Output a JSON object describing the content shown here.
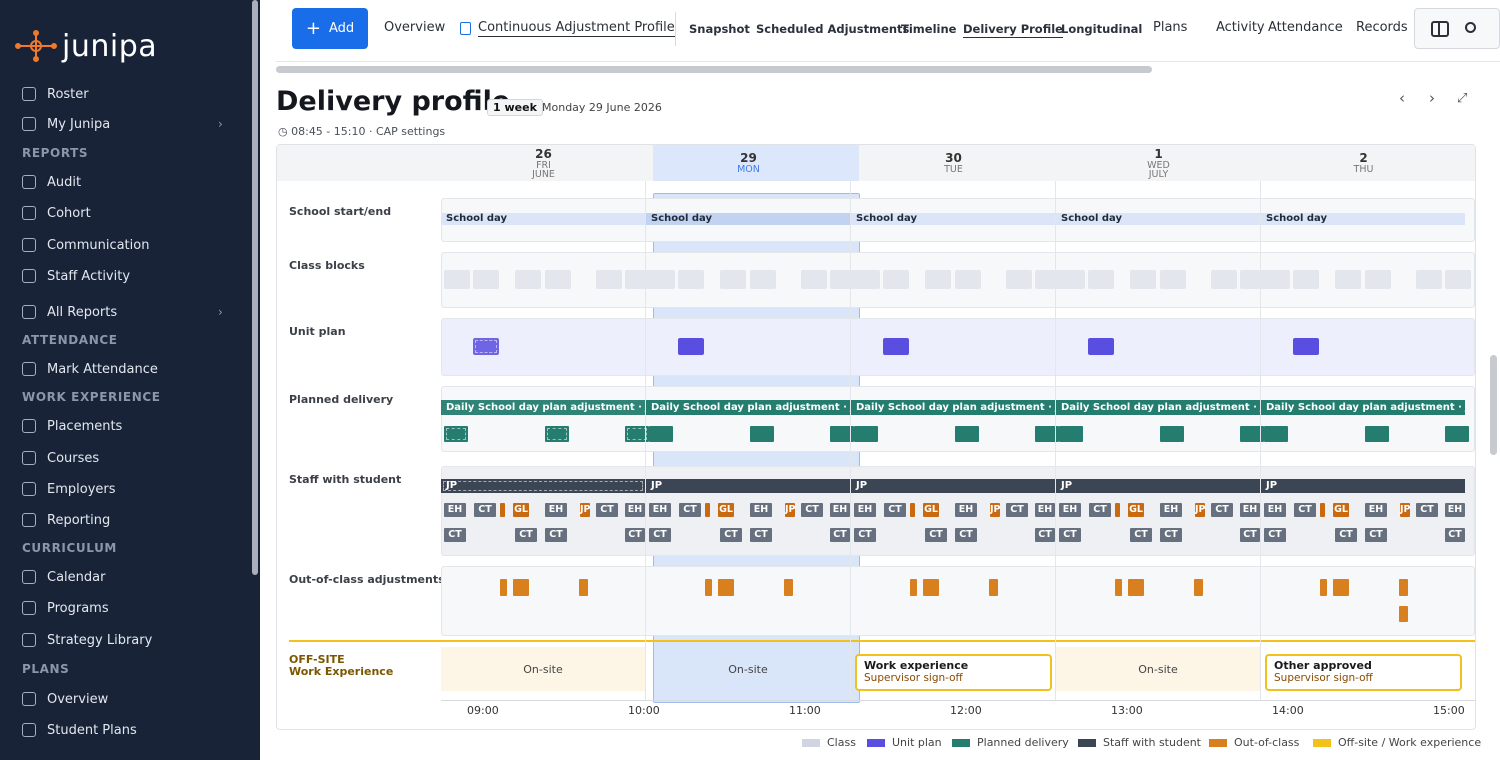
{
  "brand": "junipa",
  "sidebar": {
    "items": [
      {
        "label": "Roster",
        "icon": "list-icon"
      },
      {
        "label": "My Junipa",
        "icon": "compass-icon",
        "chev": "›"
      },
      {
        "section": "REPORTS"
      },
      {
        "label": "Audit",
        "icon": "clipboard-icon"
      },
      {
        "label": "Cohort",
        "icon": "users-icon"
      },
      {
        "label": "Communication",
        "icon": "message-icon"
      },
      {
        "label": "Staff Activity",
        "icon": "activity-icon"
      },
      {
        "label": "All Reports",
        "icon": "grid-icon",
        "chev": "›"
      },
      {
        "section": "ATTENDANCE"
      },
      {
        "label": "Mark Attendance",
        "icon": "user-check-icon"
      },
      {
        "section": "WORK EXPERIENCE"
      },
      {
        "label": "Placements",
        "icon": "briefcase-icon"
      },
      {
        "label": "Courses",
        "icon": "graduation-icon"
      },
      {
        "label": "Employers",
        "icon": "building-icon"
      },
      {
        "label": "Reporting",
        "icon": "report-icon"
      },
      {
        "section": "CURRICULUM"
      },
      {
        "label": "Calendar",
        "icon": "calendar-icon"
      },
      {
        "label": "Programs",
        "icon": "document-icon"
      },
      {
        "label": "Strategy Library",
        "icon": "book-icon"
      },
      {
        "section": "PLANS"
      },
      {
        "label": "Overview",
        "icon": "folder-icon"
      },
      {
        "label": "Student Plans",
        "icon": "users-icon"
      }
    ]
  },
  "toolbar": {
    "add": "Add",
    "tabs": [
      "Overview",
      "Continuous Adjustment Profile",
      "Snapshot",
      "Scheduled Adjustments",
      "Timeline",
      "Delivery Profile",
      "Longitudinal",
      "Plans",
      "Activity",
      "Attendance",
      "Records"
    ]
  },
  "header": {
    "title": "Delivery profile",
    "range": "1 week",
    "date": "Monday 29 June 2026",
    "subtitle": "08:45 - 15:10 · CAP settings"
  },
  "days": [
    {
      "num": "26",
      "dow": "FRI",
      "month": "JUNE"
    },
    {
      "num": "29",
      "dow": "MON",
      "month": ""
    },
    {
      "num": "30",
      "dow": "TUE",
      "month": ""
    },
    {
      "num": "1",
      "dow": "WED",
      "month": "JULY"
    },
    {
      "num": "2",
      "dow": "THU",
      "month": ""
    }
  ],
  "rows": {
    "school": "School start/end",
    "classes": "Class blocks",
    "unit": "Unit plan",
    "planned": "Planned delivery",
    "staff": "Staff with student",
    "ooc": "Out-of-class adjustments",
    "offsite_top": "OFF-SITE",
    "offsite_bottom": "Work Experience"
  },
  "school_day_label": "School day",
  "planned_label": "Daily School day plan adjustment · JP",
  "staff_code": "JP",
  "chips_row1": [
    "EH",
    "CT",
    "",
    "GL",
    "EH",
    "JP",
    "CT",
    "EH"
  ],
  "chips_row2": [
    "CT",
    "CT",
    "CT",
    "CT"
  ],
  "offsite": [
    {
      "type": "plain",
      "text": "On-site"
    },
    {
      "type": "plain",
      "text": "On-site"
    },
    {
      "type": "box",
      "title": "Work experience",
      "sub": "Supervisor sign-off"
    },
    {
      "type": "plain",
      "text": "On-site"
    },
    {
      "type": "box",
      "title": "Other approved",
      "sub": "Supervisor sign-off"
    }
  ],
  "times": [
    "09:00",
    "10:00",
    "11:00",
    "12:00",
    "13:00",
    "14:00",
    "15:00"
  ],
  "legend": [
    {
      "label": "Class",
      "color": "#cfd6e2"
    },
    {
      "label": "Unit plan",
      "color": "#5a4ee0"
    },
    {
      "label": "Planned delivery",
      "color": "#257d70"
    },
    {
      "label": "Staff with student",
      "color": "#3b4554"
    },
    {
      "label": "Out-of-class",
      "color": "#d87f1f"
    },
    {
      "label": "Off-site / Work experience",
      "color": "#f2c21b"
    }
  ]
}
